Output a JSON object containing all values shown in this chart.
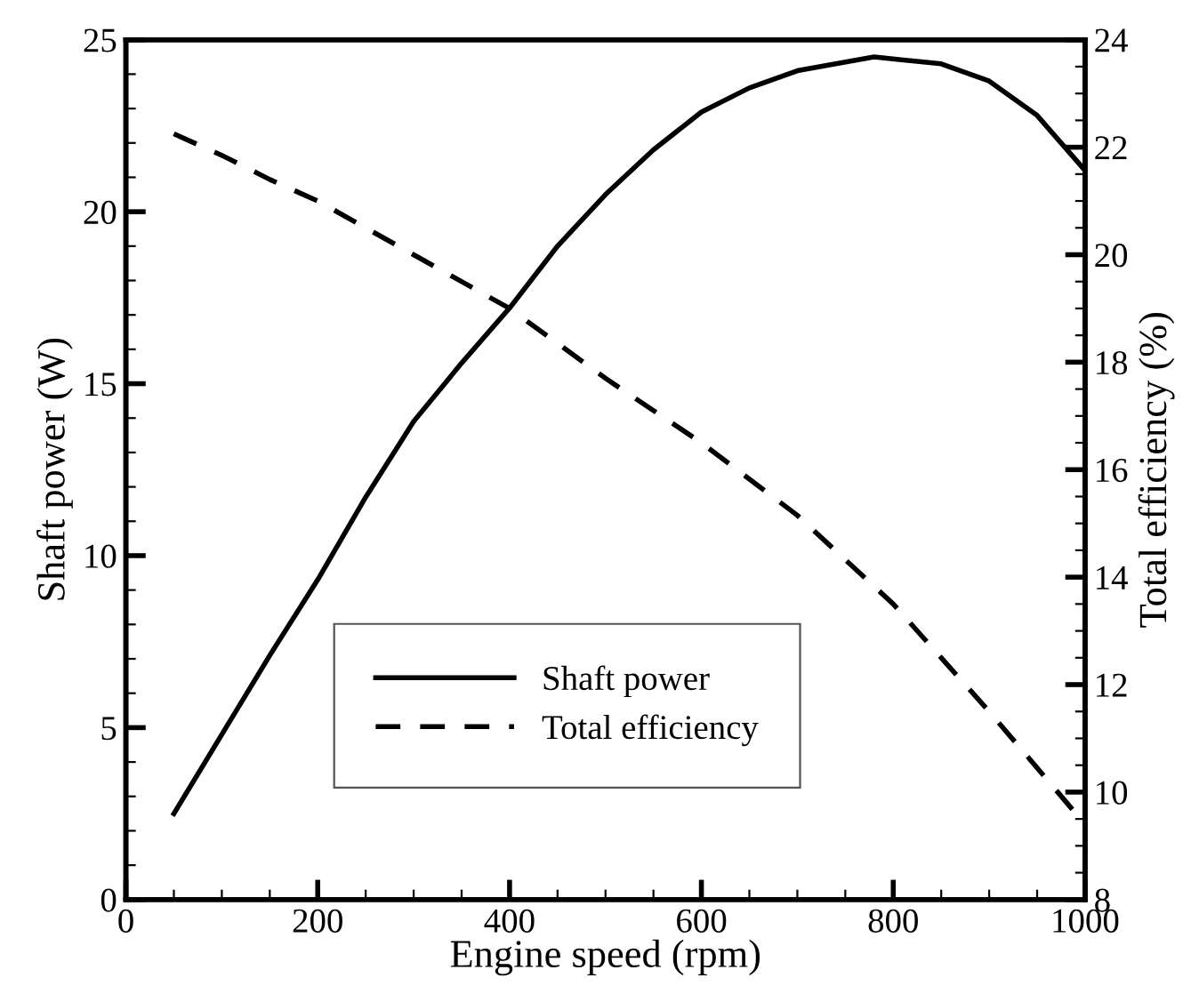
{
  "chart_data": {
    "type": "line",
    "xlabel": "Engine speed (rpm)",
    "ylabel": "Shaft power (W)",
    "y2label": "Total efficiency (%)",
    "xlim": [
      0,
      1000
    ],
    "xticks": [
      0,
      200,
      400,
      600,
      800,
      1000
    ],
    "ylim": [
      0,
      25
    ],
    "yticks": [
      0,
      5,
      10,
      15,
      20,
      25
    ],
    "y2lim": [
      8,
      24
    ],
    "y2ticks": [
      8,
      10,
      12,
      14,
      16,
      18,
      20,
      22,
      24
    ],
    "grid": false,
    "legend": "bottom",
    "marker": "none",
    "series": [
      {
        "name": "Shaft power",
        "color": "#000000",
        "line_style": "solid",
        "x": [
          50,
          100,
          150,
          200,
          250,
          300,
          350,
          400,
          450,
          500,
          550,
          600,
          650,
          700,
          780,
          850,
          900,
          950,
          1000
        ],
        "values": [
          2.5,
          4.8,
          7.1,
          9.3,
          11.7,
          13.9,
          15.6,
          17.2,
          19.0,
          20.5,
          21.8,
          22.9,
          23.6,
          24.1,
          24.5,
          24.3,
          23.8,
          22.8,
          21.2
        ]
      },
      {
        "name": "Total efficiency",
        "color": "#000000",
        "line_style": "dashed",
        "axis": "y2",
        "x": [
          50,
          100,
          150,
          200,
          300,
          400,
          500,
          600,
          700,
          800,
          900,
          1000
        ],
        "values": [
          22.25,
          21.85,
          21.4,
          21.0,
          20.0,
          19.0,
          17.7,
          16.5,
          15.15,
          13.5,
          11.5,
          9.4
        ]
      }
    ]
  }
}
